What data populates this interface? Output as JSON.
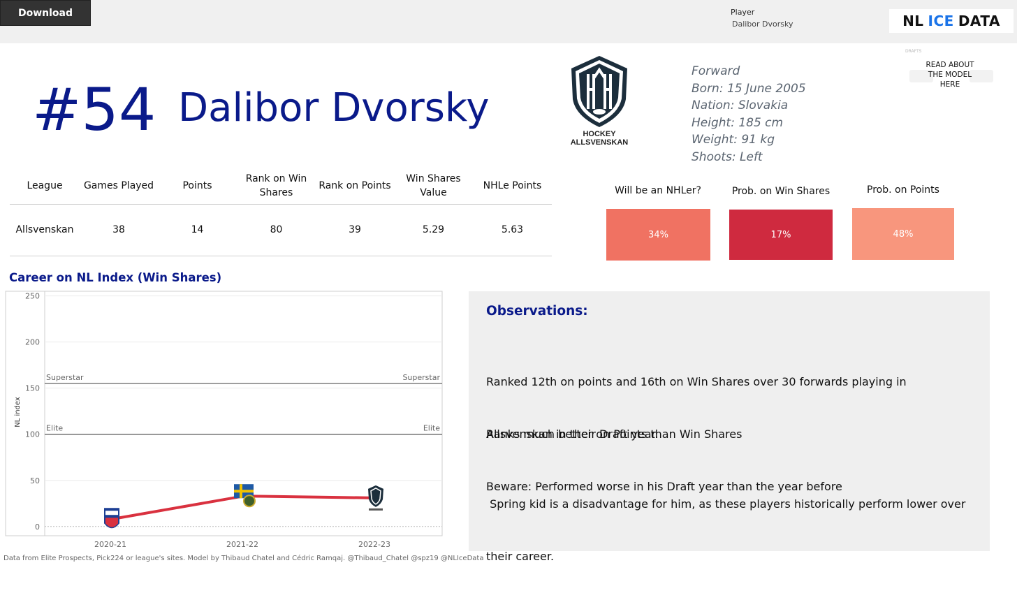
{
  "toolbar": {
    "download_label": "Download"
  },
  "player_filter": {
    "label": "Player",
    "value": "Dalibor Dvorsky"
  },
  "brand": {
    "part1": "NL",
    "part2": "ICE",
    "part3": "DATA"
  },
  "header": {
    "jersey": "#54",
    "name": "Dalibor Dvorsky"
  },
  "league_logo": {
    "icon": "hockey-allsvenskan-logo",
    "line1": "HOCKEY",
    "line2": "ALLSVENSKAN"
  },
  "info": {
    "position": "Forward",
    "born": "Born: 15 June 2005",
    "nation": "Nation: Slovakia",
    "height": "Height: 185 cm",
    "weight": "Weight: 91 kg",
    "shoots": "Shoots: Left"
  },
  "read_about": {
    "label_line1": "READ ABOUT",
    "label_line2": "THE MODEL",
    "label_line3": "HERE",
    "ghost1": "DRAFTS"
  },
  "stats_table": {
    "headers": [
      "League",
      "Games Played",
      "Points",
      "Rank on Win Shares",
      "Rank on Points",
      "Win Shares Value",
      "NHLe Points"
    ],
    "row": [
      "Allsvenskan",
      "38",
      "14",
      "80",
      "39",
      "5.29",
      "5.63"
    ]
  },
  "probabilities": [
    {
      "title": "Will be an NHLer?",
      "value": "34%",
      "color": "#f07262"
    },
    {
      "title": "Prob. on Win Shares",
      "value": "17%",
      "color": "#cf2a3f"
    },
    {
      "title": "Prob. on Points",
      "value": "48%",
      "color": "#f8967d"
    }
  ],
  "career": {
    "title": "Career on NL Index (Win Shares)"
  },
  "chart_data": {
    "type": "line",
    "title": "Career on NL Index (Win Shares)",
    "ylabel": "NL index",
    "xlabel": "",
    "ylim": [
      -10,
      255
    ],
    "yticks": [
      0,
      50,
      100,
      150,
      200,
      250
    ],
    "categories": [
      "2020-21",
      "2021-22",
      "2022-23"
    ],
    "series": [
      {
        "values": [
          8,
          33,
          31
        ],
        "color": "#d9313f",
        "markers": [
          "tipos-extraliga-logo",
          "sweden-flag-logo",
          "hockey-allsvenskan-logo"
        ]
      }
    ],
    "reference_lines": [
      {
        "label": "Superstar",
        "value": 155
      },
      {
        "label": "Elite",
        "value": 100
      }
    ],
    "grid": true
  },
  "observations": {
    "title": "Observations:",
    "p1_line1": "Ranked 12th on points and 16th on Win Shares over 30 forwards playing in",
    "p1_line2": "Allsvenskan in their Draft year.",
    "p1_line3": "Beware: Performed worse in his Draft year than the year before",
    "p2": "Ranks much better on Points than Win Shares",
    "p3_line1": " Spring kid is a disadvantage for him, as these players historically perform lower over",
    "p3_line2": "their career."
  },
  "footer": {
    "text": "Data from Elite Prospects, Pick224 or league's sites. Model by Thibaud Chatel and Cédric Ramqaj. @Thibaud_Chatel @spz19 @NLIceData"
  }
}
